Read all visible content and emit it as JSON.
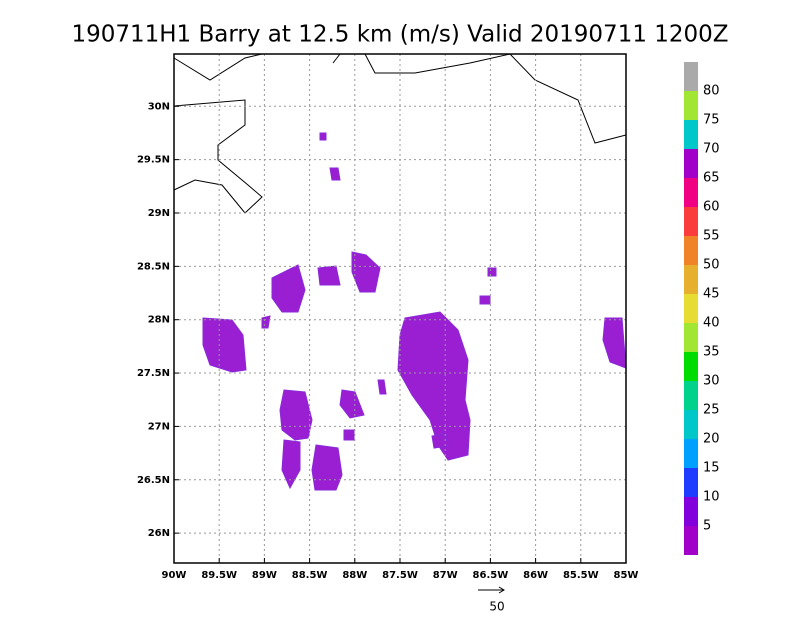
{
  "chart_data": {
    "type": "map",
    "title": "190711H1 Barry at 12.5 km (m/s) Valid 20190711 1200Z",
    "xlim": [
      -90.0,
      -85.0
    ],
    "ylim": [
      25.72,
      30.49
    ],
    "xticks": [
      {
        "value": -90,
        "label": "90W"
      },
      {
        "value": -89.5,
        "label": "89.5W"
      },
      {
        "value": -89,
        "label": "89W"
      },
      {
        "value": -88.5,
        "label": "88.5W"
      },
      {
        "value": -88,
        "label": "88W"
      },
      {
        "value": -87.5,
        "label": "87.5W"
      },
      {
        "value": -87,
        "label": "87W"
      },
      {
        "value": -86.5,
        "label": "86.5W"
      },
      {
        "value": -86,
        "label": "86W"
      },
      {
        "value": -85.5,
        "label": "85.5W"
      },
      {
        "value": -85,
        "label": "85W"
      }
    ],
    "yticks": [
      {
        "value": 26,
        "label": "26N"
      },
      {
        "value": 26.5,
        "label": "26.5N"
      },
      {
        "value": 27,
        "label": "27N"
      },
      {
        "value": 27.5,
        "label": "27.5N"
      },
      {
        "value": 28,
        "label": "28N"
      },
      {
        "value": 28.5,
        "label": "28.5N"
      },
      {
        "value": 29,
        "label": "29N"
      },
      {
        "value": 29.5,
        "label": "29.5N"
      },
      {
        "value": 30,
        "label": "30N"
      }
    ],
    "grid": true,
    "colorbar": {
      "levels": [
        5,
        10,
        15,
        20,
        25,
        30,
        35,
        40,
        45,
        50,
        55,
        60,
        65,
        70,
        75,
        80
      ],
      "colors": [
        "#a000c8",
        "#8200dc",
        "#1e3cff",
        "#00a0ff",
        "#00c8c8",
        "#00d28c",
        "#00dc00",
        "#a0e632",
        "#e6dc32",
        "#e6af2d",
        "#f08228",
        "#fa3c3c",
        "#f00082",
        "#a000c8",
        "#00c8c8",
        "#a0e632",
        "#aaaaaa"
      ]
    },
    "reference_vector": 50
  }
}
